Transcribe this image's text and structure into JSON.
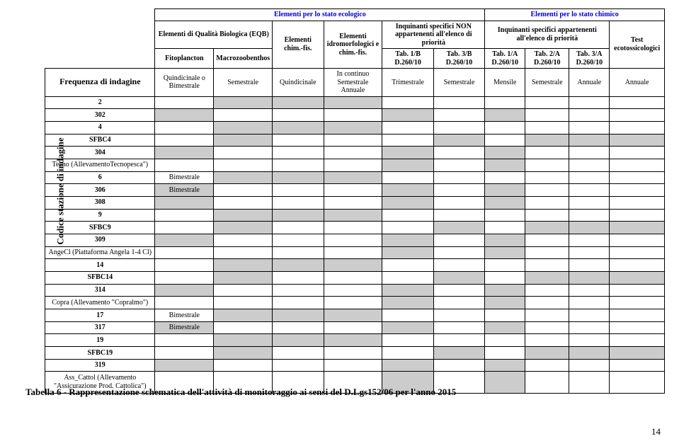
{
  "y_axis_label": "Codice stazione di indagine",
  "top_headers": {
    "ecolo": "Elementi per lo stato ecologico",
    "chim": "Elementi per lo stato chimico",
    "eqb": "Elementi di Qualità Biologica (EQB)",
    "chimfis": "Elementi chim.-fis.",
    "idro": "Elementi idromorfologici e chim.-fis.",
    "inq_non": "Inquinanti specifici NON appartenenti all'elenco di priorità",
    "inq_si": "Inquinanti specifici appartenenti all'elenco di priorità",
    "test": "Test ecotossicologici",
    "fito": "Fitoplancton",
    "macro": "Macrozoobenthos",
    "tab1b": "Tab. 1/B D.260/10",
    "tab3b": "Tab. 3/B D.260/10",
    "tab1a": "Tab. 1/A D.260/10",
    "tab2a": "Tab. 2/A D.260/10",
    "tab3a": "Tab. 3/A D.260/10",
    "freq_label": "Frequenza di indagine",
    "freq_fito": "Quindicinale o Bimestrale",
    "freq_macro": "Semestrale",
    "freq_chimfis": "Quindicinale",
    "freq_idro": "In continuo Semestrale Annuale",
    "freq_1b": "Trimestrale",
    "freq_3b": "Semestrale",
    "freq_1a": "Mensile",
    "freq_2a": "Semestrale",
    "freq_3a": "Annuale",
    "freq_test": "Annuale"
  },
  "rows": [
    {
      "label": "2",
      "bold": true,
      "cell_text": [
        "",
        "",
        "",
        "",
        "",
        "",
        "",
        "",
        "",
        ""
      ],
      "shaded": [
        false,
        true,
        true,
        true,
        false,
        false,
        false,
        false,
        false,
        false
      ]
    },
    {
      "label": "302",
      "bold": true,
      "cell_text": [
        "",
        "",
        "",
        "",
        "",
        "",
        "",
        "",
        "",
        ""
      ],
      "shaded": [
        true,
        false,
        false,
        false,
        true,
        false,
        true,
        false,
        false,
        false
      ]
    },
    {
      "label": "4",
      "bold": true,
      "cell_text": [
        "",
        "",
        "",
        "",
        "",
        "",
        "",
        "",
        "",
        ""
      ],
      "shaded": [
        false,
        true,
        true,
        true,
        false,
        false,
        false,
        false,
        false,
        false
      ]
    },
    {
      "label": "SFBC4",
      "bold": true,
      "cell_text": [
        "",
        "",
        "",
        "",
        "",
        "",
        "",
        "",
        "",
        ""
      ],
      "shaded": [
        false,
        true,
        false,
        false,
        false,
        true,
        false,
        true,
        true,
        true
      ]
    },
    {
      "label": "304",
      "bold": true,
      "cell_text": [
        "",
        "",
        "",
        "",
        "",
        "",
        "",
        "",
        "",
        ""
      ],
      "shaded": [
        true,
        false,
        false,
        false,
        true,
        false,
        true,
        false,
        false,
        false
      ]
    },
    {
      "label": "Tecno (AllevamentoTecnopesca\")",
      "bold": false,
      "cell_text": [
        "",
        "",
        "",
        "",
        "",
        "",
        "",
        "",
        "",
        ""
      ],
      "shaded": [
        false,
        false,
        false,
        false,
        true,
        false,
        true,
        false,
        false,
        false
      ]
    },
    {
      "label": "6",
      "bold": true,
      "cell_text": [
        "Bimestrale",
        "",
        "",
        "",
        "",
        "",
        "",
        "",
        "",
        ""
      ],
      "shaded": [
        false,
        true,
        true,
        true,
        false,
        false,
        false,
        false,
        false,
        false
      ]
    },
    {
      "label": "306",
      "bold": true,
      "cell_text": [
        "Bimestrale",
        "",
        "",
        "",
        "",
        "",
        "",
        "",
        "",
        ""
      ],
      "shaded": [
        true,
        false,
        false,
        false,
        true,
        false,
        true,
        false,
        false,
        false
      ]
    },
    {
      "label": "308",
      "bold": true,
      "cell_text": [
        "",
        "",
        "",
        "",
        "",
        "",
        "",
        "",
        "",
        ""
      ],
      "shaded": [
        true,
        false,
        false,
        false,
        true,
        false,
        true,
        false,
        false,
        false
      ]
    },
    {
      "label": "9",
      "bold": true,
      "cell_text": [
        "",
        "",
        "",
        "",
        "",
        "",
        "",
        "",
        "",
        ""
      ],
      "shaded": [
        false,
        true,
        true,
        true,
        false,
        false,
        false,
        false,
        false,
        false
      ]
    },
    {
      "label": "SFBC9",
      "bold": true,
      "cell_text": [
        "",
        "",
        "",
        "",
        "",
        "",
        "",
        "",
        "",
        ""
      ],
      "shaded": [
        false,
        true,
        false,
        false,
        false,
        true,
        false,
        true,
        true,
        true
      ]
    },
    {
      "label": "309",
      "bold": true,
      "cell_text": [
        "",
        "",
        "",
        "",
        "",
        "",
        "",
        "",
        "",
        ""
      ],
      "shaded": [
        true,
        false,
        false,
        false,
        true,
        false,
        true,
        false,
        false,
        false
      ]
    },
    {
      "label": "AngeCl (Piattaforma Angela 1-4 Cl)",
      "bold": false,
      "cell_text": [
        "",
        "",
        "",
        "",
        "",
        "",
        "",
        "",
        "",
        ""
      ],
      "shaded": [
        false,
        false,
        false,
        false,
        true,
        false,
        true,
        false,
        false,
        false
      ]
    },
    {
      "label": "14",
      "bold": true,
      "cell_text": [
        "",
        "",
        "",
        "",
        "",
        "",
        "",
        "",
        "",
        ""
      ],
      "shaded": [
        false,
        true,
        true,
        true,
        false,
        false,
        false,
        false,
        false,
        false
      ]
    },
    {
      "label": "SFBC14",
      "bold": true,
      "cell_text": [
        "",
        "",
        "",
        "",
        "",
        "",
        "",
        "",
        "",
        ""
      ],
      "shaded": [
        false,
        true,
        false,
        false,
        false,
        true,
        false,
        true,
        true,
        true
      ]
    },
    {
      "label": "314",
      "bold": true,
      "cell_text": [
        "",
        "",
        "",
        "",
        "",
        "",
        "",
        "",
        "",
        ""
      ],
      "shaded": [
        true,
        false,
        false,
        false,
        true,
        false,
        true,
        false,
        false,
        false
      ]
    },
    {
      "label": "Copra (Allevamento \"Copralmo\")",
      "bold": false,
      "cell_text": [
        "",
        "",
        "",
        "",
        "",
        "",
        "",
        "",
        "",
        ""
      ],
      "shaded": [
        false,
        false,
        false,
        false,
        true,
        false,
        true,
        false,
        false,
        false
      ]
    },
    {
      "label": "17",
      "bold": true,
      "cell_text": [
        "Bimestrale",
        "",
        "",
        "",
        "",
        "",
        "",
        "",
        "",
        ""
      ],
      "shaded": [
        false,
        true,
        true,
        true,
        false,
        false,
        false,
        false,
        false,
        false
      ]
    },
    {
      "label": "317",
      "bold": true,
      "cell_text": [
        "Bimestrale",
        "",
        "",
        "",
        "",
        "",
        "",
        "",
        "",
        ""
      ],
      "shaded": [
        true,
        false,
        false,
        false,
        true,
        false,
        true,
        false,
        false,
        false
      ]
    },
    {
      "label": "19",
      "bold": true,
      "cell_text": [
        "",
        "",
        "",
        "",
        "",
        "",
        "",
        "",
        "",
        ""
      ],
      "shaded": [
        false,
        true,
        true,
        true,
        false,
        false,
        false,
        false,
        false,
        false
      ]
    },
    {
      "label": "SFBC19",
      "bold": true,
      "cell_text": [
        "",
        "",
        "",
        "",
        "",
        "",
        "",
        "",
        "",
        ""
      ],
      "shaded": [
        false,
        true,
        false,
        false,
        false,
        true,
        false,
        true,
        true,
        true
      ]
    },
    {
      "label": "319",
      "bold": true,
      "cell_text": [
        "",
        "",
        "",
        "",
        "",
        "",
        "",
        "",
        "",
        ""
      ],
      "shaded": [
        true,
        false,
        false,
        false,
        true,
        false,
        true,
        false,
        false,
        false
      ]
    },
    {
      "label": "Ass_Cattol (Allevamento \"Assicurazione Prod. Cattolica\")",
      "bold": false,
      "cell_text": [
        "",
        "",
        "",
        "",
        "",
        "",
        "",
        "",
        "",
        ""
      ],
      "shaded": [
        false,
        false,
        false,
        false,
        true,
        false,
        true,
        false,
        false,
        false
      ]
    }
  ],
  "caption": "Tabella 6 - Rappresentazione schematica dell'attività di monitoraggio ai sensi del D.Lgs152/06 per l'anno 2015",
  "page_number": "14",
  "colors": {
    "shade": "#cccccc",
    "border": "#000000",
    "header_text": "#0000cc"
  },
  "col_widths": {
    "label": 150,
    "fito": 80,
    "macro": 80,
    "chimfis": 70,
    "idro": 80,
    "tab1b": 70,
    "tab3b": 70,
    "tab1a": 55,
    "tab2a": 60,
    "tab3a": 55,
    "test": 75
  }
}
